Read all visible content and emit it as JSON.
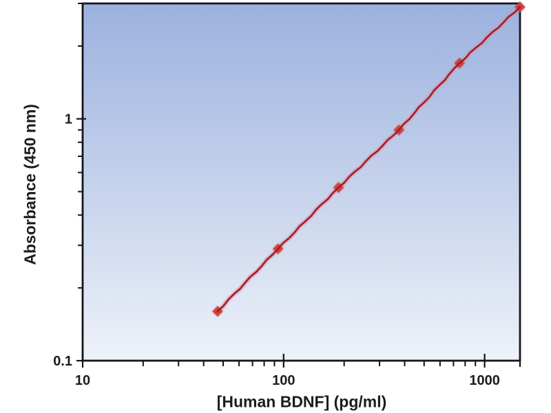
{
  "chart_data": {
    "type": "scatter",
    "xlabel": "[Human BDNF] (pg/ml)",
    "ylabel": "Absorbance (450 nm)",
    "x_scale": "log",
    "y_scale": "log",
    "xlim": [
      10,
      1500
    ],
    "ylim": [
      0.1,
      3
    ],
    "grid": false,
    "legend": false,
    "x_ticks": [
      {
        "value": 10,
        "label": "10"
      },
      {
        "value": 100,
        "label": "100"
      },
      {
        "value": 1000,
        "label": "1000"
      }
    ],
    "y_ticks": [
      {
        "value": 0.1,
        "label": "0.1"
      },
      {
        "value": 1,
        "label": "1"
      }
    ],
    "series": [
      {
        "marker": "diamond",
        "x": [
          46.9,
          93.8,
          187.5,
          375,
          750,
          1500
        ],
        "y": [
          0.16,
          0.29,
          0.52,
          0.9,
          1.7,
          2.9
        ]
      }
    ],
    "colors": {
      "marker": "#d0413a",
      "line": "#9e1d2c",
      "line_halo": "#e08a96",
      "frame": "#15151e",
      "tick": "#111111",
      "label_text": "#1c1c1c",
      "plot_bg_top": "#9bb1de",
      "plot_bg_bottom": "#eef2f9",
      "page_bg": "#ffffff"
    }
  }
}
